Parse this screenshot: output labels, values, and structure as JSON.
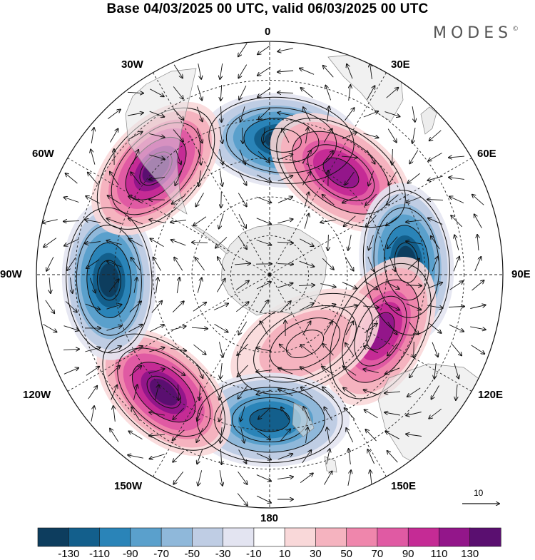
{
  "title": "Base 04/03/2025 00 UTC, valid 06/03/2025 00 UTC",
  "logo": "MODES",
  "logo_mark": "©",
  "longitude_labels": {
    "lon_0": "0",
    "lon_30e": "30E",
    "lon_60e": "60E",
    "lon_90e": "90E",
    "lon_120e": "120E",
    "lon_150e": "150E",
    "lon_180": "180",
    "lon_150w": "150W",
    "lon_120w": "120W",
    "lon_90w": "90W",
    "lon_60w": "60W",
    "lon_30w": "30W"
  },
  "reference_vector": "10",
  "colorbar": {
    "colors": [
      "#0d3d5e",
      "#135f8c",
      "#2a84b8",
      "#5aa0cc",
      "#8fb8da",
      "#bfcde4",
      "#e3e4f1",
      "#ffffff",
      "#f9d8d9",
      "#f5b3bf",
      "#ef86ac",
      "#e05aa3",
      "#c52b95",
      "#93168a",
      "#5a0f70"
    ],
    "tick_labels": [
      "-130",
      "-110",
      "-90",
      "-70",
      "-50",
      "-30",
      "-10",
      "10",
      "30",
      "50",
      "70",
      "90",
      "110",
      "130"
    ]
  },
  "anomaly_centers": [
    {
      "lon_deg": 5,
      "colat_deg": 52,
      "value": -135
    },
    {
      "lon_deg": 35,
      "colat_deg": 48,
      "value": 100
    },
    {
      "lon_deg": 85,
      "colat_deg": 53,
      "value": -135
    },
    {
      "lon_deg": 117,
      "colat_deg": 48,
      "value": 115
    },
    {
      "lon_deg": 153,
      "colat_deg": 30,
      "value": 25
    },
    {
      "lon_deg": 180,
      "colat_deg": 56,
      "value": -110
    },
    {
      "lon_deg": 222,
      "colat_deg": 61,
      "value": 120
    },
    {
      "lon_deg": 268,
      "colat_deg": 62,
      "value": -135
    },
    {
      "lon_deg": 313,
      "colat_deg": 60,
      "value": 130
    }
  ]
}
